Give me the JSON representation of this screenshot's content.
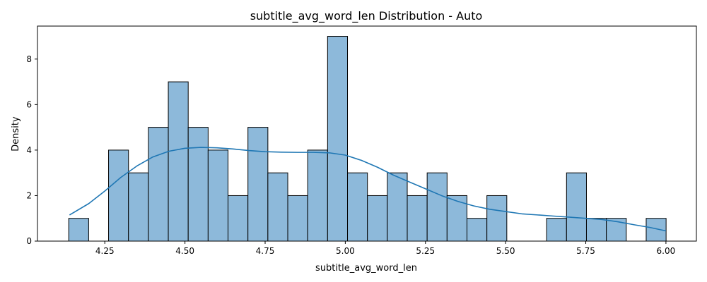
{
  "chart_data": {
    "type": "bar",
    "subtype": "histogram-with-kde",
    "title": "subtitle_avg_word_len Distribution - Auto",
    "xlabel": "subtitle_avg_word_len",
    "ylabel": "Density",
    "xlim": [
      4.04,
      6.095
    ],
    "ylim": [
      0,
      9.45
    ],
    "xticks": [
      4.25,
      4.5,
      4.75,
      5.0,
      5.25,
      5.5,
      5.75,
      6.0
    ],
    "xtick_labels": [
      "4.25",
      "4.50",
      "4.75",
      "5.00",
      "5.25",
      "5.50",
      "5.75",
      "6.00"
    ],
    "yticks": [
      0,
      2,
      4,
      6,
      8
    ],
    "ytick_labels": [
      "0",
      "2",
      "4",
      "6",
      "8"
    ],
    "grid": false,
    "legend": "none",
    "bar_color": "#8db9da",
    "bar_edge_color": "#000000",
    "kde_color": "#1f77b4",
    "bins": {
      "start": 4.1375,
      "width": 0.0621,
      "counts": [
        1,
        0,
        4,
        3,
        5,
        7,
        5,
        4,
        2,
        5,
        3,
        2,
        4,
        9,
        3,
        2,
        3,
        2,
        3,
        2,
        1,
        2,
        0,
        0,
        1,
        3,
        1,
        1,
        0,
        1
      ]
    },
    "kde": {
      "x": [
        4.14,
        4.2,
        4.25,
        4.3,
        4.35,
        4.4,
        4.45,
        4.5,
        4.55,
        4.6,
        4.65,
        4.7,
        4.75,
        4.8,
        4.85,
        4.9,
        4.95,
        5.0,
        5.05,
        5.1,
        5.15,
        5.2,
        5.25,
        5.3,
        5.35,
        5.4,
        5.45,
        5.5,
        5.55,
        5.6,
        5.65,
        5.7,
        5.75,
        5.8,
        5.85,
        5.9,
        5.95,
        6.0
      ],
      "y": [
        1.15,
        1.65,
        2.2,
        2.8,
        3.3,
        3.7,
        3.95,
        4.08,
        4.12,
        4.1,
        4.05,
        3.98,
        3.93,
        3.91,
        3.9,
        3.9,
        3.88,
        3.78,
        3.55,
        3.25,
        2.9,
        2.6,
        2.3,
        2.0,
        1.75,
        1.55,
        1.4,
        1.3,
        1.2,
        1.15,
        1.1,
        1.05,
        1.0,
        0.95,
        0.85,
        0.72,
        0.6,
        0.45
      ]
    }
  }
}
